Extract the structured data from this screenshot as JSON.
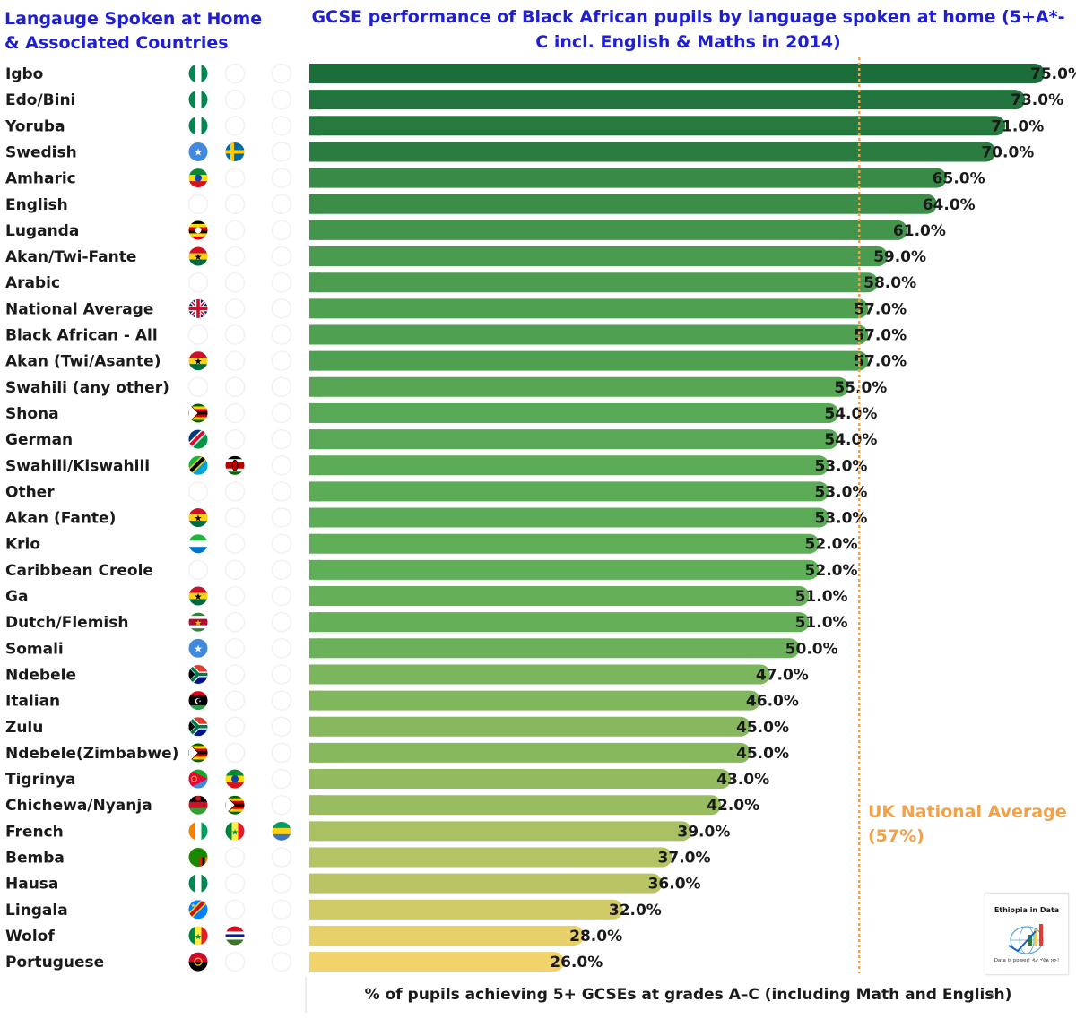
{
  "left_panel": {
    "title": "Langauge Spoken at Home & Associated Countries"
  },
  "chart_data": {
    "type": "bar",
    "orientation": "horizontal",
    "title": "GCSE performance of Black African pupils by language spoken at home (5+A*-C incl. English & Maths in 2014)",
    "xlabel": "% of pupils achieving 5+ GCSEs at grades A–C (including Math and English)",
    "ylabel": "",
    "xlim": [
      0,
      75
    ],
    "grid": false,
    "categories": [
      "Igbo",
      "Edo/Bini",
      "Yoruba",
      "Swedish",
      "Amharic",
      "English",
      "Luganda",
      "Akan/Twi-Fante",
      "Arabic",
      "National Average",
      "Black African - All",
      "Akan (Twi/Asante)",
      "Swahili (any other)",
      "Shona",
      "German",
      "Swahili/Kiswahili",
      "Other",
      "Akan (Fante)",
      "Krio",
      "Caribbean Creole",
      "Ga",
      "Dutch/Flemish",
      "Somali",
      "Ndebele",
      "Italian",
      "Zulu",
      "Ndebele(Zimbabwe)",
      "Tigrinya",
      "Chichewa/Nyanja",
      "French",
      "Bemba",
      "Hausa",
      "Lingala",
      "Wolof",
      "Portuguese"
    ],
    "values": [
      75,
      73,
      71,
      70,
      65,
      64,
      61,
      59,
      58,
      57,
      57,
      57,
      55,
      54,
      54,
      53,
      53,
      53,
      52,
      52,
      51,
      51,
      50,
      47,
      46,
      45,
      45,
      43,
      42,
      39,
      37,
      36,
      32,
      28,
      26
    ],
    "value_labels": [
      "75.0%",
      "73.0%",
      "71.0%",
      "70.0%",
      "65.0%",
      "64.0%",
      "61.0%",
      "59.0%",
      "58.0%",
      "57.0%",
      "57.0%",
      "57.0%",
      "55.0%",
      "54.0%",
      "54.0%",
      "53.0%",
      "53.0%",
      "53.0%",
      "52.0%",
      "52.0%",
      "51.0%",
      "51.0%",
      "50.0%",
      "47.0%",
      "46.0%",
      "45.0%",
      "45.0%",
      "43.0%",
      "42.0%",
      "39.0%",
      "37.0%",
      "36.0%",
      "32.0%",
      "28.0%",
      "26.0%"
    ],
    "flags": [
      [
        "nigeria"
      ],
      [
        "nigeria"
      ],
      [
        "nigeria"
      ],
      [
        "somalia",
        "sweden"
      ],
      [
        "ethiopia"
      ],
      [],
      [
        "uganda"
      ],
      [
        "ghana"
      ],
      [],
      [
        "uk"
      ],
      [],
      [
        "ghana"
      ],
      [],
      [
        "zimbabwe"
      ],
      [
        "namibia"
      ],
      [
        "tanzania",
        "kenya"
      ],
      [],
      [
        "ghana"
      ],
      [
        "sierra-leone"
      ],
      [],
      [
        "ghana"
      ],
      [
        "suriname"
      ],
      [
        "somalia"
      ],
      [
        "south-africa"
      ],
      [
        "libya"
      ],
      [
        "south-africa"
      ],
      [
        "zimbabwe"
      ],
      [
        "eritrea",
        "ethiopia"
      ],
      [
        "malawi",
        "zimbabwe"
      ],
      [
        "cote-divoire",
        "senegal",
        "gabon"
      ],
      [
        "zambia"
      ],
      [
        "nigeria"
      ],
      [
        "drc"
      ],
      [
        "senegal",
        "gambia"
      ],
      [
        "angola"
      ]
    ],
    "reference_line": {
      "value": 57,
      "label": "UK National  Average (57%)",
      "color": "#f0a14a"
    },
    "color_scale": {
      "high": "#1b6e3a",
      "mid": "#5fae58",
      "low": "#f2d36b"
    }
  },
  "logo": {
    "title": "Ethiopia in Data",
    "subtitle": "Data is power! ዳታ ሃይል ነው!"
  }
}
